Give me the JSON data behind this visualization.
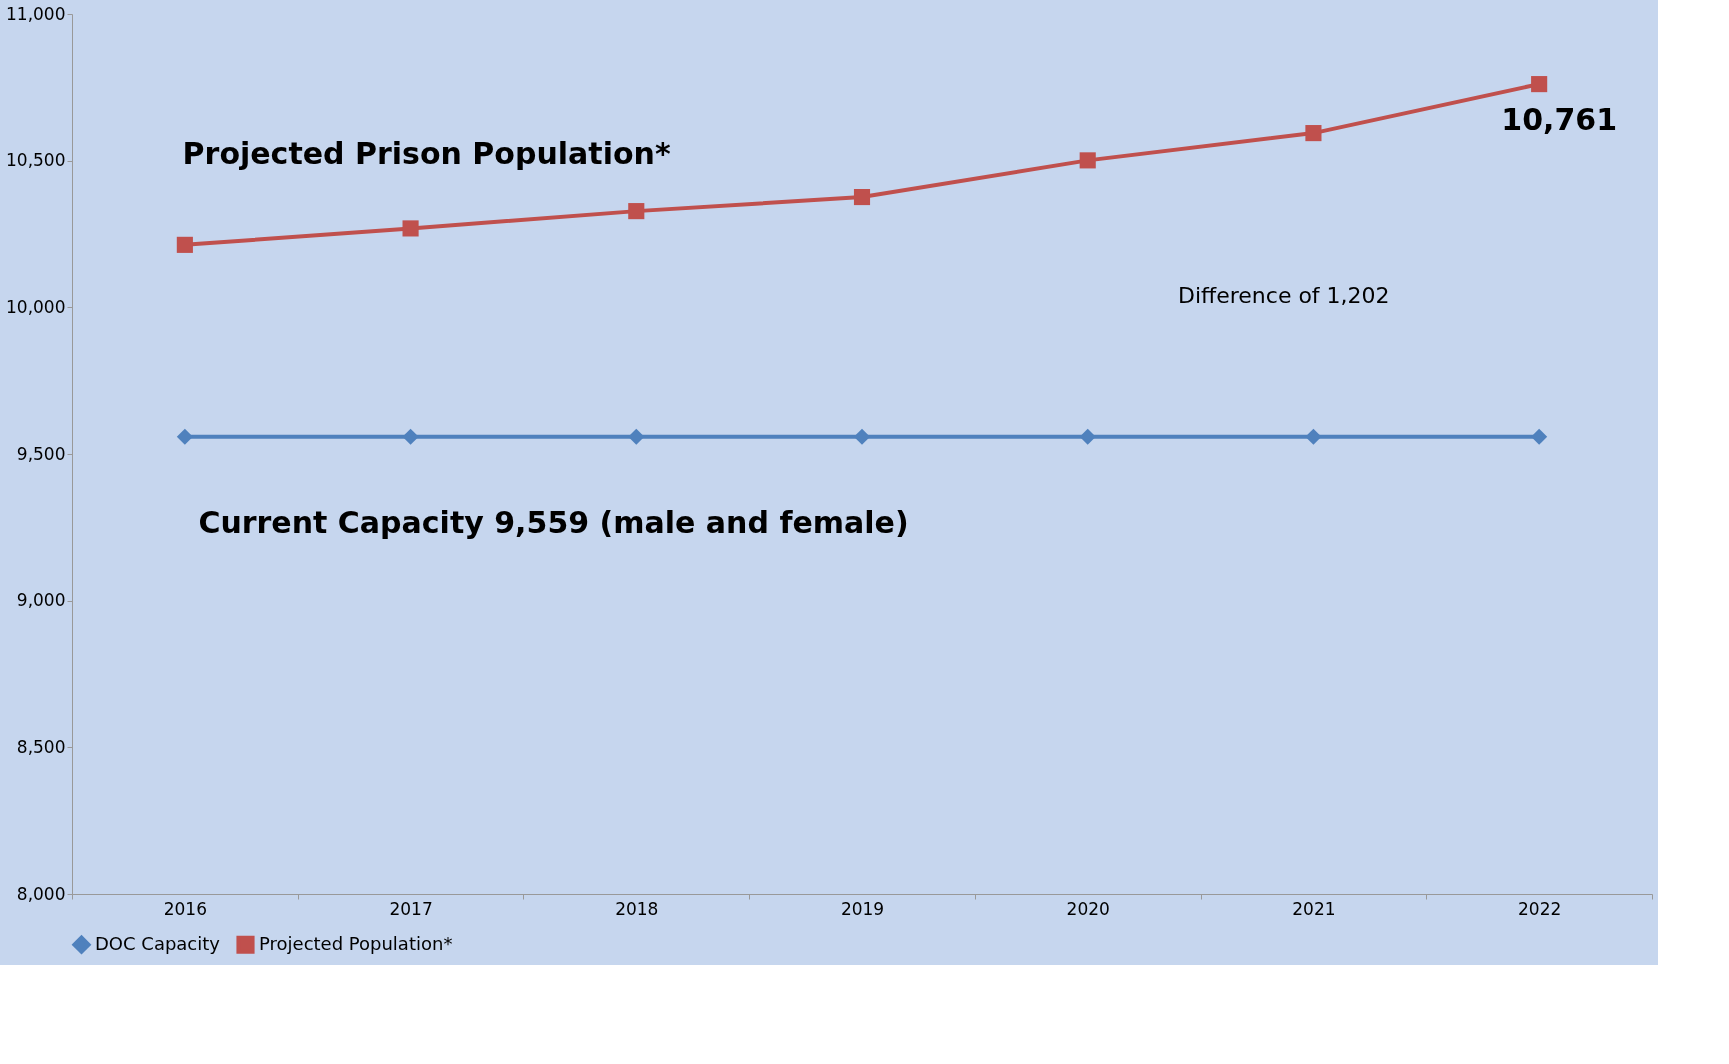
{
  "chart_data": {
    "type": "line",
    "categories": [
      "2016",
      "2017",
      "2018",
      "2019",
      "2020",
      "2021",
      "2022"
    ],
    "series": [
      {
        "name": "DOC Capacity",
        "color": "#4f81bd",
        "marker": "diamond",
        "values": [
          9559,
          9559,
          9559,
          9559,
          9559,
          9559,
          9559
        ]
      },
      {
        "name": "Projected Population*",
        "color": "#c0504d",
        "marker": "square",
        "values": [
          10213,
          10269,
          10328,
          10376,
          10501,
          10594,
          10761
        ]
      }
    ],
    "ylim": [
      8000,
      11000
    ],
    "yticks": [
      {
        "value": 8000,
        "label": "8,000"
      },
      {
        "value": 8500,
        "label": "8,500"
      },
      {
        "value": 9000,
        "label": "9,000"
      },
      {
        "value": 9500,
        "label": "9,500"
      },
      {
        "value": 10000,
        "label": "10,000"
      },
      {
        "value": 10500,
        "label": "10,500"
      },
      {
        "value": 11000,
        "label": "11,000"
      }
    ],
    "grid": false,
    "legend": "bottom",
    "annotations": [
      "Projected Prison Population*",
      "Current Capacity 9,559 (male and female)",
      "Difference of 1,202",
      {
        "text": "10,761",
        "x": "2022",
        "y": 10761
      }
    ]
  }
}
